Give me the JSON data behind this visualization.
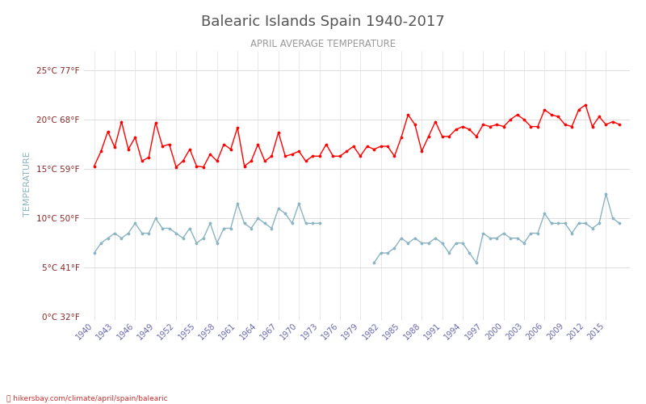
{
  "title": "Balearic Islands Spain 1940-2017",
  "subtitle": "APRIL AVERAGE TEMPERATURE",
  "ylabel": "TEMPERATURE",
  "xlabel_url": "hikersbay.com/climate/april/spain/balearic",
  "years": [
    1940,
    1941,
    1942,
    1943,
    1944,
    1945,
    1946,
    1947,
    1948,
    1949,
    1950,
    1951,
    1952,
    1953,
    1954,
    1955,
    1956,
    1957,
    1958,
    1959,
    1960,
    1961,
    1962,
    1963,
    1964,
    1965,
    1966,
    1967,
    1968,
    1969,
    1970,
    1971,
    1972,
    1973,
    1974,
    1975,
    1976,
    1977,
    1978,
    1979,
    1980,
    1981,
    1982,
    1983,
    1984,
    1985,
    1986,
    1987,
    1988,
    1989,
    1990,
    1991,
    1992,
    1993,
    1994,
    1995,
    1996,
    1997,
    1998,
    1999,
    2000,
    2001,
    2002,
    2003,
    2004,
    2005,
    2006,
    2007,
    2008,
    2009,
    2010,
    2011,
    2012,
    2013,
    2014,
    2015,
    2016,
    2017
  ],
  "day_temps": [
    15.3,
    16.8,
    18.8,
    17.2,
    19.8,
    17.0,
    18.2,
    15.8,
    16.2,
    19.7,
    17.3,
    17.5,
    15.2,
    15.8,
    17.0,
    15.3,
    15.2,
    16.5,
    15.8,
    17.5,
    17.0,
    19.2,
    15.3,
    15.8,
    17.5,
    15.8,
    16.3,
    18.7,
    16.3,
    16.5,
    16.8,
    15.8,
    16.3,
    16.3,
    17.5,
    16.3,
    16.3,
    16.8,
    17.3,
    16.3,
    17.3,
    17.0,
    17.3,
    17.3,
    16.3,
    18.2,
    20.5,
    19.5,
    16.8,
    18.3,
    19.8,
    18.3,
    18.3,
    19.0,
    19.3,
    19.0,
    18.3,
    19.5,
    19.3,
    19.5,
    19.3,
    20.0,
    20.5,
    20.0,
    19.3,
    19.3,
    21.0,
    20.5,
    20.3,
    19.5,
    19.3,
    21.0,
    21.5,
    19.3,
    20.3,
    19.5,
    19.8,
    19.5
  ],
  "night_temps": [
    6.5,
    7.5,
    8.0,
    8.5,
    8.0,
    8.5,
    9.5,
    8.5,
    8.5,
    10.0,
    9.0,
    9.0,
    8.5,
    8.0,
    9.0,
    7.5,
    8.0,
    9.5,
    7.5,
    9.0,
    9.0,
    11.5,
    9.5,
    9.0,
    10.0,
    9.5,
    9.0,
    11.0,
    10.5,
    9.5,
    11.5,
    9.5,
    9.5,
    9.5,
    null,
    null,
    null,
    null,
    null,
    null,
    null,
    5.5,
    6.5,
    6.5,
    7.0,
    8.0,
    7.5,
    8.0,
    7.5,
    7.5,
    8.0,
    7.5,
    6.5,
    7.5,
    7.5,
    6.5,
    5.5,
    8.5,
    8.0,
    8.0,
    8.5,
    8.0,
    8.0,
    7.5,
    8.5,
    8.5,
    10.5,
    9.5,
    9.5,
    9.5,
    8.5,
    9.5,
    9.5,
    9.0,
    9.5,
    12.5,
    10.0,
    9.5
  ],
  "yticks_c": [
    0,
    5,
    10,
    15,
    20,
    25
  ],
  "yticks_f": [
    32,
    41,
    50,
    59,
    68,
    77
  ],
  "ylim": [
    0,
    27
  ],
  "xlim": [
    1938.5,
    2018.5
  ],
  "day_color": "#ff0000",
  "night_color": "#8ab4c2",
  "title_color": "#555555",
  "subtitle_color": "#999999",
  "ylabel_color": "#8ab4c2",
  "ytick_color": "#8b2525",
  "xtick_color": "#6666aa",
  "grid_color": "#d8d8d8",
  "bg_color": "#ffffff",
  "url_color": "#cc3333",
  "legend_text_color": "#555588"
}
